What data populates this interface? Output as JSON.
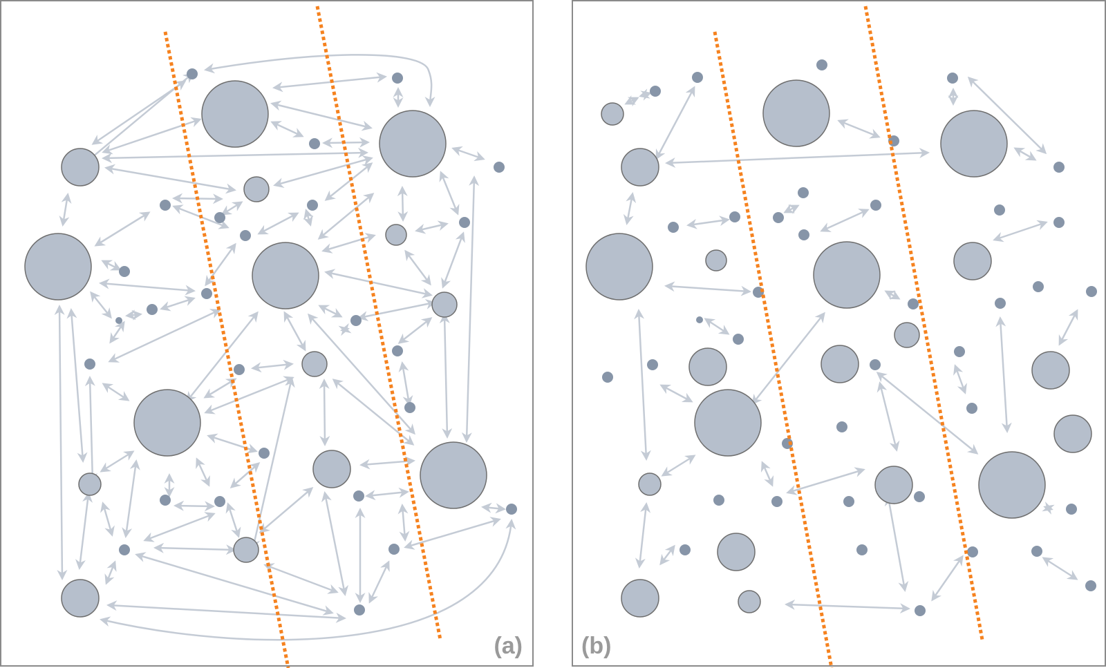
{
  "panels": [
    {
      "id": "a",
      "label": "(a)"
    },
    {
      "id": "b",
      "label": "(b)"
    }
  ],
  "colors": {
    "node_fill": "#b6bfcc",
    "node_stroke": "#6e6e6e",
    "small_node_fill": "#8795a8",
    "edge": "#c4cbd5",
    "cut_line": "#f5821f",
    "frame": "#8a8a8a",
    "label": "#9a9a9a"
  }
}
